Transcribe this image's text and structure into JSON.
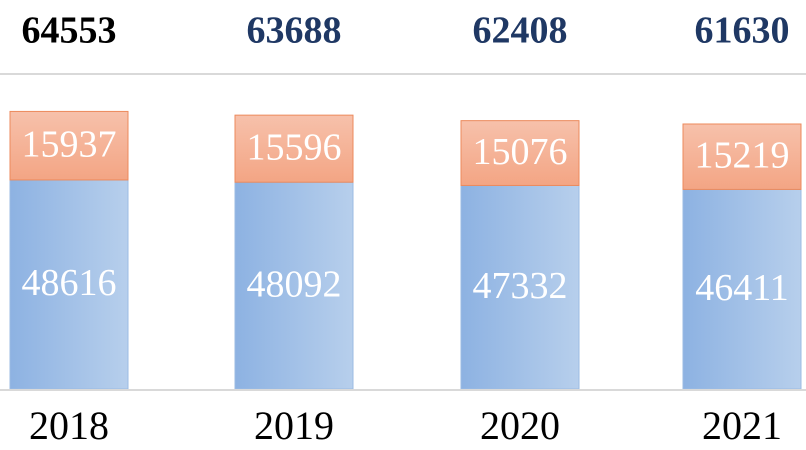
{
  "chart_data": {
    "type": "stacked-bar",
    "categories": [
      "2018",
      "2019",
      "2020",
      "2021"
    ],
    "totals": [
      64553,
      63688,
      62408,
      61630
    ],
    "series": [
      {
        "color": "#9dbde6",
        "values": [
          48616,
          48092,
          47332,
          46411
        ]
      },
      {
        "color": "#f5b49a",
        "values": [
          15937,
          15596,
          15076,
          15219
        ]
      }
    ]
  }
}
